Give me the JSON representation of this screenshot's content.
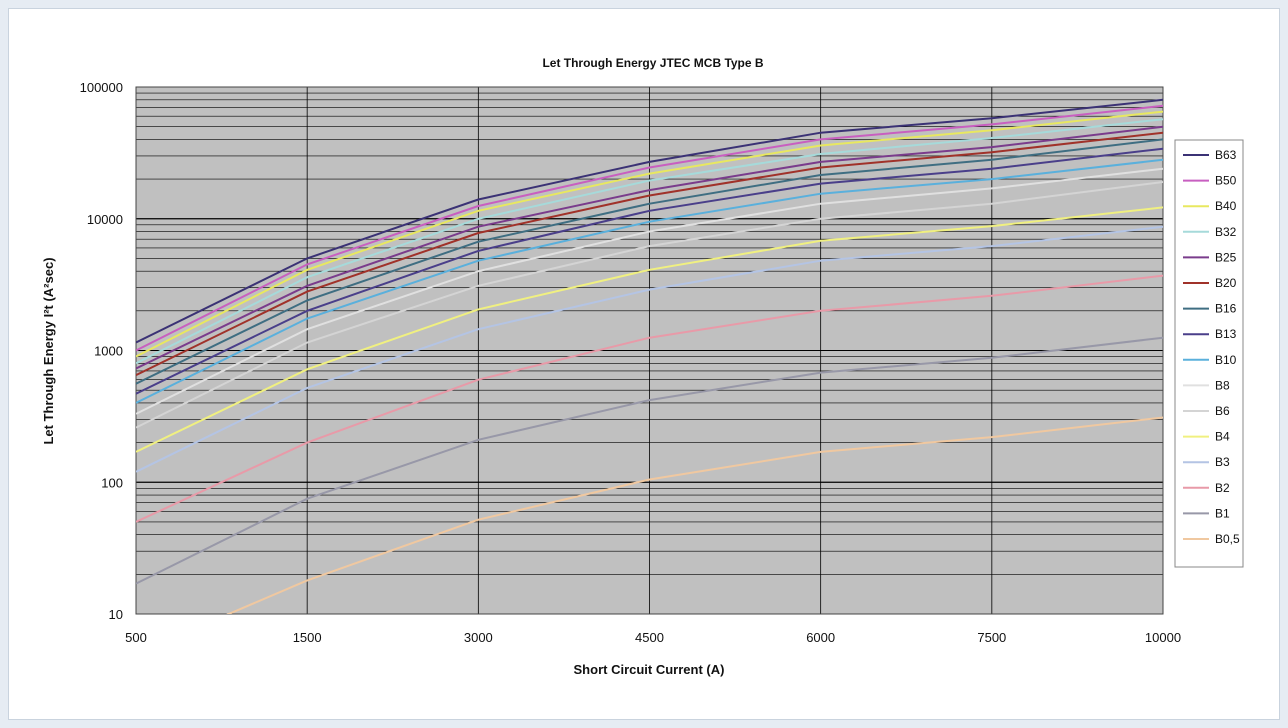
{
  "chart_data": {
    "type": "line",
    "title": "Let Through Energy JTEC MCB Type B",
    "xlabel": "Short Circuit Current (A)",
    "ylabel": "Let Through Energy I²t  (A²sec)",
    "y_scale": "log",
    "ylim": [
      10,
      100000
    ],
    "x_scale": "categorical",
    "categories": [
      "500",
      "1500",
      "3000",
      "4500",
      "6000",
      "7500",
      "10000"
    ],
    "y_ticks": [
      "10",
      "100",
      "1000",
      "10000",
      "100000"
    ],
    "grid": true,
    "plot_background": "#c0c0c0",
    "legend_position": "right",
    "series": [
      {
        "name": "B63",
        "color": "#3b3275",
        "values": [
          1150,
          5000,
          14000,
          27000,
          45000,
          58000,
          80000
        ]
      },
      {
        "name": "B50",
        "color": "#c85fc0",
        "values": [
          1000,
          4500,
          12500,
          24500,
          40000,
          52000,
          72000
        ]
      },
      {
        "name": "B40",
        "color": "#e8e860",
        "values": [
          900,
          4100,
          11500,
          22000,
          36000,
          47000,
          65000
        ]
      },
      {
        "name": "B32",
        "color": "#a6dada",
        "values": [
          800,
          3600,
          10000,
          19500,
          31000,
          41000,
          57000
        ]
      },
      {
        "name": "B25",
        "color": "#7a3c8c",
        "values": [
          730,
          3100,
          8700,
          16500,
          27000,
          35000,
          50000
        ]
      },
      {
        "name": "B20",
        "color": "#a0322a",
        "values": [
          650,
          2800,
          7800,
          15000,
          24500,
          32000,
          45000
        ]
      },
      {
        "name": "B16",
        "color": "#3f6e82",
        "values": [
          560,
          2400,
          6700,
          13000,
          21500,
          28000,
          40000
        ]
      },
      {
        "name": "B13",
        "color": "#4a3f8a",
        "values": [
          470,
          2000,
          5700,
          11500,
          18500,
          24000,
          34000
        ]
      },
      {
        "name": "B10",
        "color": "#5ab0dc",
        "values": [
          400,
          1750,
          4800,
          9500,
          15500,
          20000,
          28000
        ]
      },
      {
        "name": "B8",
        "color": "#e0e0e0",
        "values": [
          330,
          1450,
          4000,
          8000,
          13000,
          17000,
          24000
        ]
      },
      {
        "name": "B6",
        "color": "#d4d4d4",
        "values": [
          260,
          1150,
          3100,
          6200,
          10000,
          13000,
          19000
        ]
      },
      {
        "name": "B4",
        "color": "#f0f080",
        "values": [
          170,
          720,
          2050,
          4100,
          6800,
          8800,
          12200
        ]
      },
      {
        "name": "B3",
        "color": "#b4c4e4",
        "values": [
          120,
          520,
          1450,
          2900,
          4800,
          6200,
          8700
        ]
      },
      {
        "name": "B2",
        "color": "#e89aa8",
        "values": [
          50,
          200,
          600,
          1250,
          2000,
          2600,
          3700
        ]
      },
      {
        "name": "B1",
        "color": "#9898a8",
        "values": [
          17,
          75,
          210,
          420,
          680,
          880,
          1250
        ]
      },
      {
        "name": "B0,5",
        "color": "#f0c8a0",
        "values": [
          5,
          18,
          52,
          105,
          170,
          220,
          310
        ]
      }
    ]
  }
}
